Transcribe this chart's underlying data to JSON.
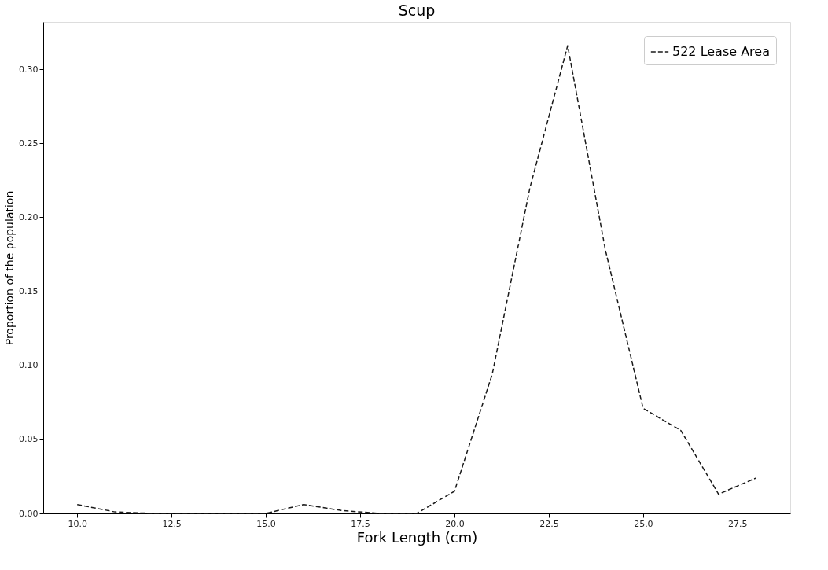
{
  "chart_data": {
    "type": "line",
    "title": "Scup",
    "xlabel": "Fork Length (cm)",
    "ylabel": "Proportion of the population",
    "x": [
      10,
      11,
      12,
      13,
      14,
      15,
      16,
      17,
      18,
      19,
      20,
      21,
      22,
      23,
      24,
      25,
      26,
      27,
      28
    ],
    "series": [
      {
        "name": "522 Lease Area",
        "color": "#1a1a1a",
        "values": [
          0.006,
          0.001,
          0,
          0,
          0,
          0,
          0.006,
          0.002,
          0,
          0,
          0.015,
          0.094,
          0.22,
          0.316,
          0.178,
          0.071,
          0.056,
          0.013,
          0.024
        ]
      }
    ],
    "xlim": [
      9.1,
      28.9
    ],
    "xticks": [
      {
        "value": 10,
        "label": "10.0"
      },
      12.5,
      {
        "value": 15,
        "label": "15.0"
      },
      17.5,
      {
        "value": 20,
        "label": "20.0"
      },
      22.5,
      {
        "value": 25,
        "label": "25.0"
      },
      27.5
    ],
    "ylim": [
      0,
      0.332
    ],
    "yticks": [
      {
        "value": 0,
        "label": "0.00"
      },
      0.05,
      {
        "value": 0.1,
        "label": "0.10"
      },
      0.15,
      {
        "value": 0.2,
        "label": "0.20"
      },
      0.25,
      {
        "value": 0.3,
        "label": "0.30"
      }
    ],
    "grid": false,
    "legend": "top right",
    "marker": "none",
    "line_style": "dashed"
  }
}
